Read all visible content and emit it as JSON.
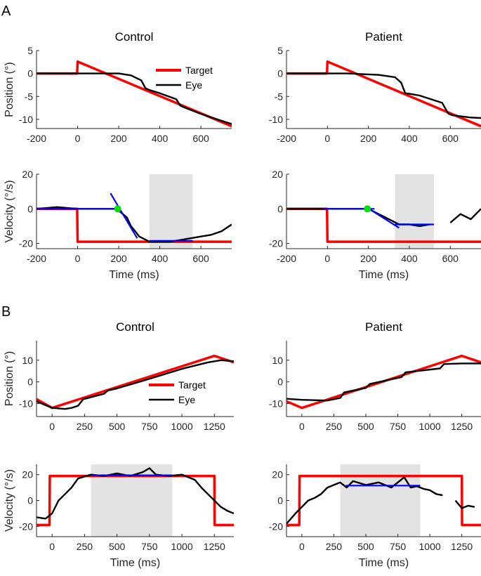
{
  "panels": {
    "A": "A",
    "B": "B"
  },
  "colors": {
    "target": "#ff0000",
    "eye": "#000000",
    "fit": "#0000ff",
    "onset": "#00e000",
    "window": "#e3e3e3",
    "axis": "#262626"
  },
  "chart_data": [
    {
      "id": "A-control-position",
      "type": "line",
      "title": "Control",
      "ylabel": "Position (°)",
      "xlabel": "",
      "xlim": [
        -200,
        750
      ],
      "ylim": [
        -12,
        5
      ],
      "xticks": [
        -200,
        0,
        200,
        400,
        600
      ],
      "yticks": [
        5,
        0,
        -5,
        -10
      ],
      "legend": {
        "position": "top-right",
        "entries": [
          "Target",
          "Eye"
        ]
      },
      "series": [
        {
          "name": "Target",
          "color": "red",
          "x": [
            -200,
            -2,
            0,
            750
          ],
          "y": [
            0,
            0,
            2.6,
            -11.5
          ]
        },
        {
          "name": "Eye",
          "color": "black",
          "x": [
            -200,
            0,
            200,
            260,
            310,
            330,
            350,
            400,
            480,
            500,
            520,
            600,
            700,
            750
          ],
          "y": [
            0,
            0,
            0,
            -0.4,
            -1.5,
            -3.2,
            -3.6,
            -4.3,
            -5.6,
            -7.0,
            -7.4,
            -8.8,
            -10.3,
            -11.0
          ]
        }
      ]
    },
    {
      "id": "A-patient-position",
      "type": "line",
      "title": "Patient",
      "ylabel": "",
      "xlabel": "",
      "xlim": [
        -200,
        750
      ],
      "ylim": [
        -12,
        5
      ],
      "xticks": [
        -200,
        0,
        200,
        400,
        600
      ],
      "yticks": [
        5,
        0,
        -5,
        -10
      ],
      "series": [
        {
          "name": "Target",
          "color": "red",
          "x": [
            -200,
            -2,
            0,
            750
          ],
          "y": [
            0,
            0,
            2.6,
            -11.5
          ]
        },
        {
          "name": "Eye",
          "color": "black",
          "x": [
            -200,
            0,
            100,
            250,
            330,
            360,
            380,
            400,
            450,
            560,
            590,
            610,
            700,
            750
          ],
          "y": [
            0,
            0,
            0,
            -0.3,
            -0.8,
            -2.0,
            -4.3,
            -4.4,
            -4.8,
            -6.4,
            -8.7,
            -9.1,
            -9.6,
            -9.7
          ]
        }
      ]
    },
    {
      "id": "A-control-velocity",
      "type": "line",
      "title": "",
      "ylabel": "Velocity (°/s)",
      "xlabel": "Time (ms)",
      "xlim": [
        -200,
        750
      ],
      "ylim": [
        -23,
        20
      ],
      "xticks": [
        -200,
        0,
        200,
        400,
        600
      ],
      "yticks": [
        20,
        0,
        -20
      ],
      "shaded_window": [
        350,
        560
      ],
      "onset_marker": {
        "x": 195,
        "y": 0
      },
      "series": [
        {
          "name": "Target",
          "color": "red",
          "x": [
            -200,
            -2,
            0,
            750
          ],
          "y": [
            0,
            0,
            -19,
            -19
          ]
        },
        {
          "name": "Eye",
          "color": "black",
          "x": [
            -200,
            -100,
            0,
            100,
            180,
            200,
            240,
            260,
            280,
            300,
            350,
            400,
            450,
            500,
            550,
            600,
            650,
            700,
            750
          ],
          "y": [
            0,
            1,
            0,
            0,
            0,
            -1,
            -5,
            -10,
            -13,
            -16,
            -19,
            -19,
            -19,
            -18,
            -17,
            -16,
            -15,
            -13,
            -9
          ]
        },
        {
          "name": "Fit baseline",
          "color": "blue",
          "x": [
            -200,
            200
          ],
          "y": [
            0,
            0
          ]
        },
        {
          "name": "Fit slope",
          "color": "blue",
          "x": [
            160,
            290
          ],
          "y": [
            9,
            -17
          ]
        },
        {
          "name": "Fit steady",
          "color": "blue",
          "x": [
            350,
            560
          ],
          "y": [
            -18.5,
            -18.5
          ]
        }
      ]
    },
    {
      "id": "A-patient-velocity",
      "type": "line",
      "title": "",
      "ylabel": "",
      "xlabel": "Time (ms)",
      "xlim": [
        -200,
        750
      ],
      "ylim": [
        -23,
        20
      ],
      "xticks": [
        -200,
        0,
        200,
        400,
        600
      ],
      "yticks": [
        20,
        0,
        -20
      ],
      "shaded_window": [
        330,
        520
      ],
      "onset_marker": {
        "x": 195,
        "y": 0
      },
      "series": [
        {
          "name": "Target",
          "color": "red",
          "x": [
            -200,
            -2,
            0,
            750
          ],
          "y": [
            0,
            0,
            -19,
            -19
          ]
        },
        {
          "name": "Eye",
          "color": "black",
          "x": [
            -200,
            -100,
            0,
            100,
            200,
            250,
            300,
            350,
            400,
            450,
            500
          ],
          "y": [
            0,
            0,
            0,
            0,
            0,
            -3,
            -6,
            -9,
            -9,
            -10,
            -9
          ]
        },
        {
          "name": "Eye (after saccade)",
          "color": "black",
          "x": [
            600,
            650,
            700,
            750
          ],
          "y": [
            -8,
            -3,
            -6,
            0
          ]
        },
        {
          "name": "Fit baseline",
          "color": "blue",
          "x": [
            -20,
            230
          ],
          "y": [
            0,
            0
          ]
        },
        {
          "name": "Fit slope",
          "color": "blue",
          "x": [
            190,
            350
          ],
          "y": [
            1,
            -11
          ]
        },
        {
          "name": "Fit steady",
          "color": "blue",
          "x": [
            330,
            520
          ],
          "y": [
            -9,
            -9
          ]
        }
      ]
    },
    {
      "id": "B-control-position",
      "type": "line",
      "title": "Control",
      "ylabel": "Position (°)",
      "xlabel": "",
      "xlim": [
        -120,
        1400
      ],
      "ylim": [
        -16,
        19
      ],
      "xticks": [
        0,
        250,
        500,
        750,
        1000,
        1250
      ],
      "yticks": [
        10,
        0,
        -10
      ],
      "legend": {
        "position": "center-bottom",
        "entries": [
          "Target",
          "Eye"
        ]
      },
      "series": [
        {
          "name": "Target",
          "color": "red",
          "x": [
            -120,
            0,
            1250,
            1400
          ],
          "y": [
            -8,
            -12,
            12,
            9
          ]
        },
        {
          "name": "Eye",
          "color": "black",
          "x": [
            -120,
            0,
            100,
            150,
            200,
            240,
            400,
            430,
            500,
            700,
            1000,
            1200,
            1300,
            1400
          ],
          "y": [
            -9,
            -12,
            -12.5,
            -12,
            -11,
            -8,
            -5.5,
            -4,
            -3,
            0.5,
            6,
            9,
            10,
            9.5
          ]
        }
      ]
    },
    {
      "id": "B-patient-position",
      "type": "line",
      "title": "Patient",
      "ylabel": "",
      "xlabel": "",
      "xlim": [
        -120,
        1400
      ],
      "ylim": [
        -16,
        19
      ],
      "xticks": [
        0,
        250,
        500,
        750,
        1000,
        1250
      ],
      "yticks": [
        10,
        0,
        -10
      ],
      "series": [
        {
          "name": "Target",
          "color": "red",
          "x": [
            -120,
            0,
            1250,
            1400
          ],
          "y": [
            -9,
            -12,
            12,
            9
          ]
        },
        {
          "name": "Eye",
          "color": "black",
          "x": [
            -120,
            0,
            200,
            300,
            330,
            500,
            530,
            780,
            810,
            1080,
            1110,
            1250,
            1400
          ],
          "y": [
            -7.8,
            -8.3,
            -8.6,
            -7.4,
            -4.9,
            -2.8,
            -1,
            2.2,
            4.4,
            6.2,
            8.2,
            8.5,
            8.5
          ]
        }
      ]
    },
    {
      "id": "B-control-velocity",
      "type": "line",
      "title": "",
      "ylabel": "Velocity (°/s)",
      "xlabel": "Time (ms)",
      "xlim": [
        -120,
        1400
      ],
      "ylim": [
        -28,
        28
      ],
      "xticks": [
        0,
        250,
        500,
        750,
        1000,
        1250
      ],
      "yticks": [
        20,
        0,
        -20
      ],
      "shaded_window": [
        300,
        925
      ],
      "series": [
        {
          "name": "Target",
          "color": "red",
          "x": [
            -120,
            -20,
            -18,
            1250,
            1252,
            1400
          ],
          "y": [
            -19,
            -19,
            19,
            19,
            -19,
            -19
          ]
        },
        {
          "name": "Eye",
          "color": "black",
          "x": [
            -120,
            -50,
            0,
            50,
            100,
            150,
            200,
            300,
            400,
            500,
            600,
            700,
            750,
            800,
            900,
            1000,
            1100,
            1150,
            1200,
            1250,
            1300,
            1350,
            1400
          ],
          "y": [
            -13,
            -14,
            -10,
            0,
            5,
            10,
            17,
            20,
            19,
            21,
            19,
            22,
            25,
            20,
            19,
            20,
            16,
            10,
            5,
            0,
            -5,
            -8,
            -10
          ]
        },
        {
          "name": "Fit steady",
          "color": "blue",
          "x": [
            300,
            925
          ],
          "y": [
            19.5,
            19.5
          ]
        }
      ]
    },
    {
      "id": "B-patient-velocity",
      "type": "line",
      "title": "",
      "ylabel": "",
      "xlabel": "Time (ms)",
      "xlim": [
        -120,
        1400
      ],
      "ylim": [
        -28,
        28
      ],
      "xticks": [
        0,
        250,
        500,
        750,
        1000,
        1250
      ],
      "yticks": [
        20,
        0,
        -20
      ],
      "shaded_window": [
        300,
        925
      ],
      "series": [
        {
          "name": "Target",
          "color": "red",
          "x": [
            -120,
            -20,
            -18,
            1250,
            1252,
            1400
          ],
          "y": [
            -19,
            -19,
            19,
            19,
            -19,
            -19
          ]
        },
        {
          "name": "Eye",
          "color": "black",
          "x": [
            -120,
            -50,
            0,
            50,
            100,
            150,
            200,
            250,
            300,
            350,
            400,
            500,
            600,
            700,
            800,
            850,
            900,
            950,
            1000,
            1050,
            1100
          ],
          "y": [
            -18,
            -10,
            -5,
            0,
            2,
            5,
            10,
            12,
            14,
            10,
            15,
            12,
            14,
            10,
            18,
            10,
            11,
            9,
            8,
            5,
            4
          ]
        },
        {
          "name": "Eye (late)",
          "color": "black",
          "x": [
            1200,
            1250,
            1300,
            1350
          ],
          "y": [
            0,
            -6,
            -4,
            -5
          ]
        },
        {
          "name": "Fit steady",
          "color": "blue",
          "x": [
            345,
            925
          ],
          "y": [
            11.5,
            11.5
          ]
        }
      ]
    }
  ]
}
